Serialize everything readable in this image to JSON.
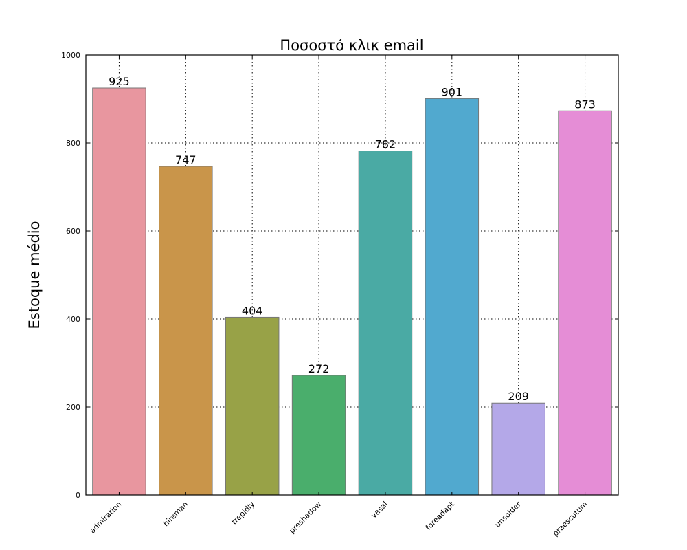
{
  "chart_data": {
    "type": "bar",
    "title": "Ποσοστό κλικ email",
    "xlabel": "",
    "ylabel": "Estoque médio",
    "categories": [
      "admiration",
      "hireman",
      "trepidly",
      "preshadow",
      "vasal",
      "foreadapt",
      "unsolder",
      "praescutum"
    ],
    "values": [
      925,
      747,
      404,
      272,
      782,
      901,
      209,
      873
    ],
    "colors": [
      "#e8969f",
      "#c9954a",
      "#98a247",
      "#4aae6c",
      "#4aaaa4",
      "#51a9cf",
      "#b4a8e8",
      "#e58dd6"
    ],
    "ylim": [
      0,
      1000
    ],
    "yticks": [
      0,
      200,
      400,
      600,
      800,
      1000
    ],
    "grid": true,
    "legend": "none"
  }
}
